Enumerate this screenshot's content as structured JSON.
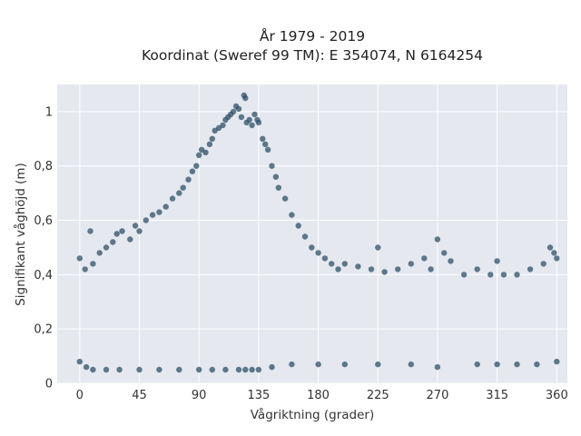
{
  "chart_data": {
    "type": "scatter",
    "title": "År 1979 - 2019",
    "subtitle": "Koordinat (Sweref 99 TM): E 354074, N 6164254",
    "xlabel": "Vågriktning (grader)",
    "ylabel": "Signifikant våghöjd (m)",
    "xlim": [
      -17,
      368
    ],
    "ylim": [
      0,
      1.1
    ],
    "x_ticks": [
      0,
      45,
      90,
      135,
      180,
      225,
      270,
      315,
      360
    ],
    "x_tick_labels": [
      "0",
      "45",
      "90",
      "135",
      "180",
      "225",
      "270",
      "315",
      "360"
    ],
    "y_ticks": [
      0,
      0.2,
      0.4,
      0.6,
      0.8,
      1
    ],
    "y_tick_labels": [
      "0",
      "0,2",
      "0,4",
      "0,6",
      "0,8",
      "1"
    ],
    "grid": true,
    "background_color": "#e5e8ef",
    "marker_color": "#2e5068",
    "series": [
      {
        "x": [
          0,
          4,
          8,
          10,
          15,
          20,
          25,
          28,
          32,
          38,
          42,
          45,
          50,
          55,
          60,
          65,
          70,
          75,
          78,
          82,
          85,
          88,
          90,
          92,
          95,
          98,
          100,
          102,
          105,
          108,
          110,
          112,
          114,
          116,
          118,
          120,
          122,
          124,
          125,
          126,
          128,
          130,
          132,
          134,
          135,
          138,
          140,
          142,
          145,
          148,
          150,
          155,
          160,
          165,
          170,
          175,
          180,
          185,
          190,
          195,
          200,
          210,
          220,
          225,
          230,
          240,
          250,
          260,
          265,
          270,
          275,
          280,
          290,
          300,
          310,
          315,
          320,
          330,
          340,
          350,
          355,
          358,
          360
        ],
        "y": [
          0.46,
          0.42,
          0.56,
          0.44,
          0.48,
          0.5,
          0.52,
          0.55,
          0.56,
          0.53,
          0.58,
          0.56,
          0.6,
          0.62,
          0.63,
          0.65,
          0.68,
          0.7,
          0.72,
          0.75,
          0.78,
          0.8,
          0.84,
          0.86,
          0.85,
          0.88,
          0.9,
          0.93,
          0.94,
          0.95,
          0.97,
          0.98,
          0.99,
          1.0,
          1.02,
          1.01,
          0.98,
          1.06,
          1.05,
          0.96,
          0.97,
          0.95,
          0.99,
          0.97,
          0.96,
          0.9,
          0.88,
          0.86,
          0.8,
          0.76,
          0.72,
          0.68,
          0.62,
          0.58,
          0.54,
          0.5,
          0.48,
          0.46,
          0.44,
          0.42,
          0.44,
          0.43,
          0.42,
          0.5,
          0.41,
          0.42,
          0.44,
          0.46,
          0.42,
          0.53,
          0.48,
          0.45,
          0.4,
          0.42,
          0.4,
          0.45,
          0.4,
          0.4,
          0.42,
          0.44,
          0.5,
          0.48,
          0.46
        ]
      },
      {
        "x": [
          0,
          5,
          10,
          20,
          30,
          45,
          60,
          75,
          90,
          100,
          110,
          120,
          125,
          130,
          135,
          145,
          160,
          180,
          200,
          225,
          250,
          270,
          300,
          315,
          330,
          345,
          360
        ],
        "y": [
          0.08,
          0.06,
          0.05,
          0.05,
          0.05,
          0.05,
          0.05,
          0.05,
          0.05,
          0.05,
          0.05,
          0.05,
          0.05,
          0.05,
          0.05,
          0.06,
          0.07,
          0.07,
          0.07,
          0.07,
          0.07,
          0.06,
          0.07,
          0.07,
          0.07,
          0.07,
          0.08
        ]
      }
    ]
  }
}
